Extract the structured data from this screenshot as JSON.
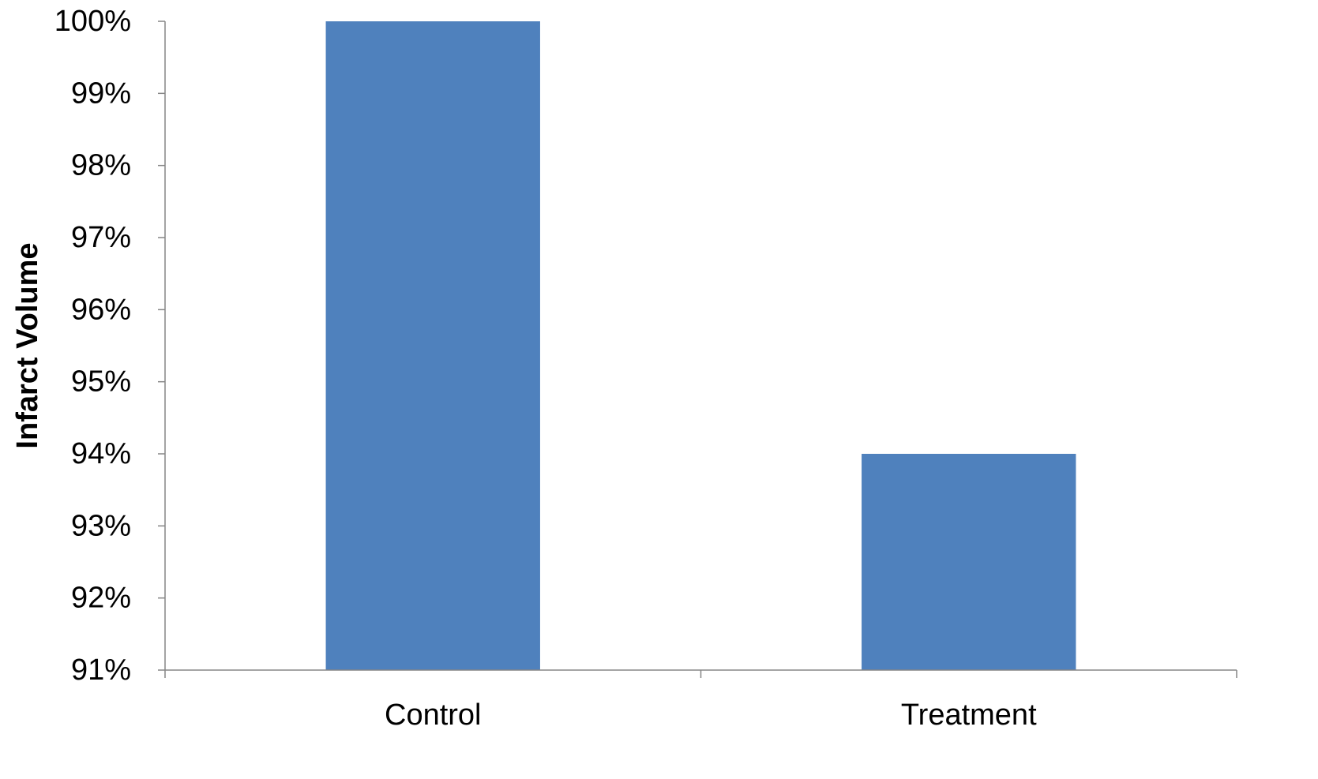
{
  "chart_data": {
    "type": "bar",
    "title": "",
    "xlabel": "",
    "ylabel": "Infarct Volume",
    "categories": [
      "Control",
      "Treatment"
    ],
    "values": [
      100,
      94
    ],
    "ylim": [
      91,
      100
    ],
    "yticks": [
      91,
      92,
      93,
      94,
      95,
      96,
      97,
      98,
      99,
      100
    ],
    "ytick_labels": [
      "91%",
      "92%",
      "93%",
      "94%",
      "95%",
      "96%",
      "97%",
      "98%",
      "99%",
      "100%"
    ],
    "grid": false,
    "legend": "none",
    "bar_color": "#4F81BD",
    "axis_color": "#868686"
  }
}
